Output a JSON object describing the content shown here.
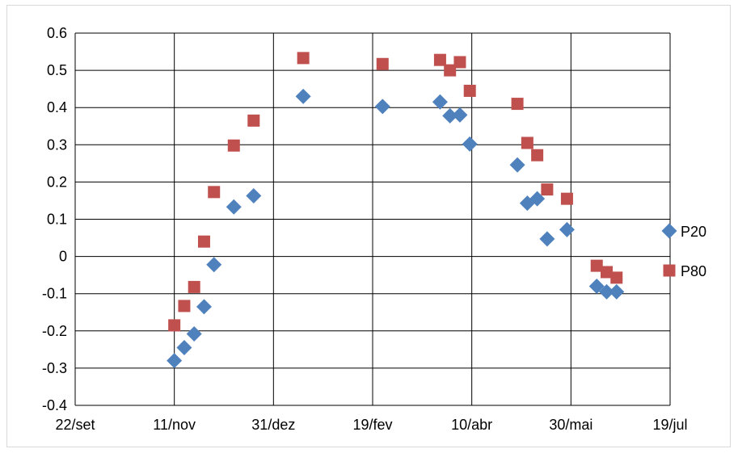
{
  "chart_data": {
    "type": "scatter",
    "title": "",
    "xlabel": "",
    "ylabel": "",
    "x_ticks": [
      "22/set",
      "11/nov",
      "31/dez",
      "19/fev",
      "10/abr",
      "30/mai",
      "19/jul"
    ],
    "y_ticks": [
      "0.6",
      "0.5",
      "0.4",
      "0.3",
      "0.2",
      "0.1",
      "0",
      "-0.1",
      "-0.2",
      "-0.3",
      "-0.4"
    ],
    "ylim": [
      -0.4,
      0.6
    ],
    "xlim": [
      "22/set",
      "19/jul"
    ],
    "grid": "vertical and horizontal",
    "legend_position": "right",
    "series": [
      {
        "name": "P20",
        "marker": "diamond",
        "color": "#4f81bd",
        "points": [
          {
            "x": "11/nov",
            "y": -0.28
          },
          {
            "x": "16/nov",
            "y": -0.245
          },
          {
            "x": "21/nov",
            "y": -0.208
          },
          {
            "x": "26/nov",
            "y": -0.135
          },
          {
            "x": "1/dez",
            "y": -0.022
          },
          {
            "x": "11/dez",
            "y": 0.133
          },
          {
            "x": "21/dez",
            "y": 0.163
          },
          {
            "x": "15/jan",
            "y": 0.43
          },
          {
            "x": "24/fev",
            "y": 0.403
          },
          {
            "x": "25/mar",
            "y": 0.415
          },
          {
            "x": "30/mar",
            "y": 0.378
          },
          {
            "x": "4/abr",
            "y": 0.38
          },
          {
            "x": "9/abr",
            "y": 0.302
          },
          {
            "x": "3/mai",
            "y": 0.246
          },
          {
            "x": "8/mai",
            "y": 0.143
          },
          {
            "x": "13/mai",
            "y": 0.155
          },
          {
            "x": "18/mai",
            "y": 0.047
          },
          {
            "x": "28/mai",
            "y": 0.072
          },
          {
            "x": "12/jun",
            "y": -0.08
          },
          {
            "x": "17/jun",
            "y": -0.095
          },
          {
            "x": "22/jun",
            "y": -0.095
          }
        ]
      },
      {
        "name": "P80",
        "marker": "square",
        "color": "#c0504d",
        "points": [
          {
            "x": "11/nov",
            "y": -0.185
          },
          {
            "x": "16/nov",
            "y": -0.133
          },
          {
            "x": "21/nov",
            "y": -0.082
          },
          {
            "x": "26/nov",
            "y": 0.04
          },
          {
            "x": "1/dez",
            "y": 0.173
          },
          {
            "x": "11/dez",
            "y": 0.298
          },
          {
            "x": "21/dez",
            "y": 0.365
          },
          {
            "x": "15/jan",
            "y": 0.533
          },
          {
            "x": "24/fev",
            "y": 0.517
          },
          {
            "x": "25/mar",
            "y": 0.528
          },
          {
            "x": "30/mar",
            "y": 0.5
          },
          {
            "x": "4/abr",
            "y": 0.522
          },
          {
            "x": "9/abr",
            "y": 0.445
          },
          {
            "x": "3/mai",
            "y": 0.41
          },
          {
            "x": "8/mai",
            "y": 0.305
          },
          {
            "x": "13/mai",
            "y": 0.272
          },
          {
            "x": "18/mai",
            "y": 0.18
          },
          {
            "x": "28/mai",
            "y": 0.155
          },
          {
            "x": "12/jun",
            "y": -0.025
          },
          {
            "x": "17/jun",
            "y": -0.042
          },
          {
            "x": "22/jun",
            "y": -0.057
          }
        ]
      }
    ]
  }
}
